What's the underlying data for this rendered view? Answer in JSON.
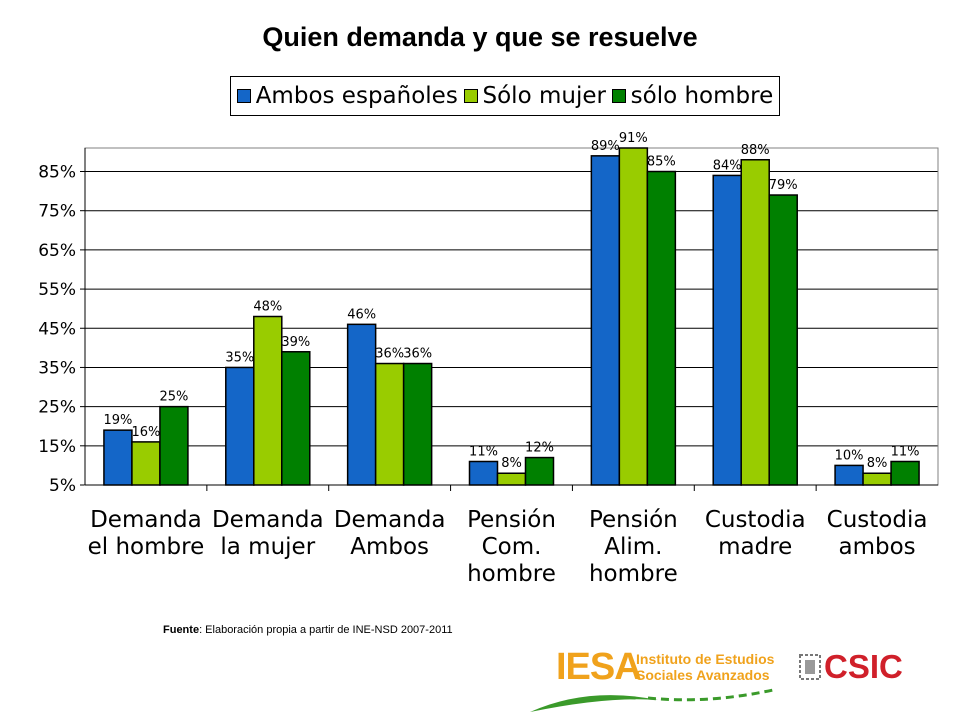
{
  "chart_data": {
    "type": "bar",
    "title": "Quien demanda y que se resuelve",
    "categories": [
      [
        "Demanda",
        "el hombre"
      ],
      [
        "Demanda",
        "la mujer"
      ],
      [
        "Demanda",
        "Ambos"
      ],
      [
        "Pensión",
        "Com.",
        "hombre"
      ],
      [
        "Pensión",
        "Alim.",
        "hombre"
      ],
      [
        "Custodia",
        "madre"
      ],
      [
        "Custodia",
        "ambos"
      ]
    ],
    "series": [
      {
        "name": "Ambos españoles",
        "color": "#1466c8",
        "values": [
          19,
          35,
          46,
          11,
          89,
          84,
          10
        ]
      },
      {
        "name": "Sólo mujer",
        "color": "#99cc00",
        "values": [
          16,
          48,
          36,
          8,
          91,
          88,
          8
        ]
      },
      {
        "name": "sólo hombre",
        "color": "#008000",
        "values": [
          25,
          39,
          36,
          12,
          85,
          79,
          11
        ]
      }
    ],
    "ylim": [
      5,
      91
    ],
    "yticks": [
      "5%",
      "15%",
      "25%",
      "35%",
      "45%",
      "55%",
      "65%",
      "75%",
      "85%"
    ],
    "ytick_values": [
      5,
      15,
      25,
      35,
      45,
      55,
      65,
      75,
      85
    ],
    "grid": true,
    "legend": "top",
    "data_labels": true,
    "xlabel": "",
    "ylabel": ""
  },
  "source_note": {
    "label": "Fuente",
    "text": ": Elaboración propia a partir de INE-NSD 2007-2011"
  },
  "logos": {
    "iesa": {
      "mark": "IESA",
      "line1": "Instituto de Estudios",
      "line2": "Sociales Avanzados",
      "color": "#f0a21c"
    },
    "csic": {
      "text": "CSIC",
      "color": "#d0202a"
    }
  }
}
